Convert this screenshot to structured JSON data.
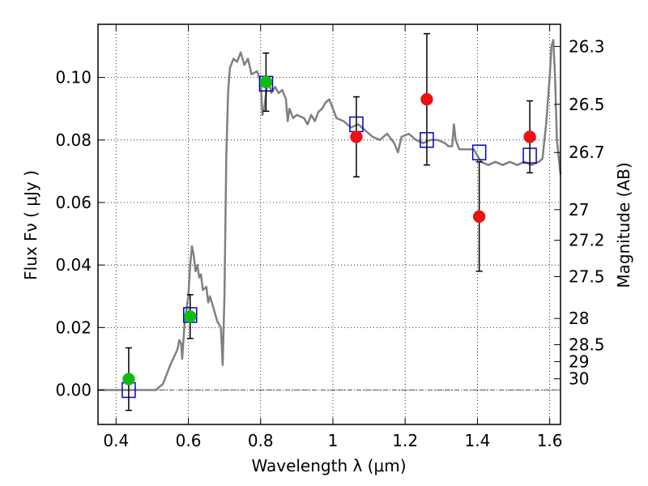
{
  "chart_data": {
    "type": "scatter",
    "xlabel": "Wavelength  λ (μm)",
    "ylabel": "Flux  Fν  ( μJy )",
    "ylabel_right": "Magnitude (AB)",
    "xlim": [
      0.35,
      1.63
    ],
    "ylim": [
      -0.011,
      0.117
    ],
    "grid": true,
    "x_ticks": [
      0.4,
      0.6,
      0.8,
      1.0,
      1.2,
      1.4,
      1.6
    ],
    "x_tick_labels": [
      "0.4",
      "0.6",
      "0.8",
      "1",
      "1.2",
      "1.4",
      "1.6"
    ],
    "y_ticks": [
      0.0,
      0.02,
      0.04,
      0.06,
      0.08,
      0.1
    ],
    "y_tick_labels": [
      "0.00",
      "0.02",
      "0.04",
      "0.06",
      "0.08",
      "0.10"
    ],
    "right_ticks": [
      {
        "label": "26.3",
        "flux": 0.1099
      },
      {
        "label": "26.5",
        "flux": 0.0914
      },
      {
        "label": "26.7",
        "flux": 0.076
      },
      {
        "label": "27",
        "flux": 0.0577
      },
      {
        "label": "27.2",
        "flux": 0.0479
      },
      {
        "label": "27.5",
        "flux": 0.0363
      },
      {
        "label": "28",
        "flux": 0.0229
      },
      {
        "label": "28.5",
        "flux": 0.0145
      },
      {
        "label": "29",
        "flux": 0.0091
      },
      {
        "label": "30",
        "flux": 0.0036
      }
    ],
    "zero_line": 0.0,
    "colors": {
      "model": "#808080",
      "model_points": "#0000cc",
      "green_points": "#11bb11",
      "red_points": "#ee1111",
      "errorbars": "#000000"
    },
    "series": [
      {
        "kind": "line",
        "points": [
          [
            0.35,
            0.0
          ],
          [
            0.51,
            0.0
          ],
          [
            0.53,
            0.002
          ],
          [
            0.55,
            0.008
          ],
          [
            0.57,
            0.013
          ],
          [
            0.575,
            0.016
          ],
          [
            0.58,
            0.015
          ],
          [
            0.583,
            0.01
          ],
          [
            0.59,
            0.022
          ],
          [
            0.6,
            0.03
          ],
          [
            0.605,
            0.04
          ],
          [
            0.61,
            0.046
          ],
          [
            0.615,
            0.043
          ],
          [
            0.62,
            0.038
          ],
          [
            0.625,
            0.04
          ],
          [
            0.63,
            0.036
          ],
          [
            0.635,
            0.037
          ],
          [
            0.64,
            0.032
          ],
          [
            0.65,
            0.033
          ],
          [
            0.655,
            0.028
          ],
          [
            0.66,
            0.03
          ],
          [
            0.67,
            0.026
          ],
          [
            0.68,
            0.022
          ],
          [
            0.69,
            0.02
          ],
          [
            0.695,
            0.008
          ],
          [
            0.7,
            0.03
          ],
          [
            0.705,
            0.075
          ],
          [
            0.71,
            0.095
          ],
          [
            0.715,
            0.103
          ],
          [
            0.725,
            0.106
          ],
          [
            0.735,
            0.105
          ],
          [
            0.745,
            0.108
          ],
          [
            0.755,
            0.104
          ],
          [
            0.765,
            0.106
          ],
          [
            0.775,
            0.101
          ],
          [
            0.79,
            0.102
          ],
          [
            0.8,
            0.099
          ],
          [
            0.805,
            0.088
          ],
          [
            0.81,
            0.09
          ],
          [
            0.82,
            0.1
          ],
          [
            0.83,
            0.095
          ],
          [
            0.84,
            0.097
          ],
          [
            0.85,
            0.095
          ],
          [
            0.86,
            0.096
          ],
          [
            0.87,
            0.093
          ],
          [
            0.875,
            0.086
          ],
          [
            0.88,
            0.09
          ],
          [
            0.89,
            0.087
          ],
          [
            0.9,
            0.088
          ],
          [
            0.92,
            0.087
          ],
          [
            0.93,
            0.085
          ],
          [
            0.94,
            0.088
          ],
          [
            0.95,
            0.086
          ],
          [
            0.96,
            0.089
          ],
          [
            0.97,
            0.09
          ],
          [
            0.98,
            0.092
          ],
          [
            0.99,
            0.093
          ],
          [
            1.0,
            0.09
          ],
          [
            1.01,
            0.087
          ],
          [
            1.03,
            0.086
          ],
          [
            1.05,
            0.084
          ],
          [
            1.07,
            0.085
          ],
          [
            1.09,
            0.083
          ],
          [
            1.11,
            0.081
          ],
          [
            1.13,
            0.08
          ],
          [
            1.15,
            0.082
          ],
          [
            1.17,
            0.079
          ],
          [
            1.18,
            0.076
          ],
          [
            1.19,
            0.081
          ],
          [
            1.21,
            0.082
          ],
          [
            1.23,
            0.08
          ],
          [
            1.25,
            0.079
          ],
          [
            1.27,
            0.08
          ],
          [
            1.29,
            0.08
          ],
          [
            1.31,
            0.079
          ],
          [
            1.32,
            0.078
          ],
          [
            1.33,
            0.078
          ],
          [
            1.335,
            0.085
          ],
          [
            1.34,
            0.08
          ],
          [
            1.35,
            0.077
          ],
          [
            1.37,
            0.077
          ],
          [
            1.39,
            0.077
          ],
          [
            1.4,
            0.075
          ],
          [
            1.41,
            0.073
          ],
          [
            1.43,
            0.072
          ],
          [
            1.45,
            0.073
          ],
          [
            1.47,
            0.072
          ],
          [
            1.49,
            0.073
          ],
          [
            1.51,
            0.072
          ],
          [
            1.53,
            0.073
          ],
          [
            1.55,
            0.072
          ],
          [
            1.57,
            0.073
          ],
          [
            1.58,
            0.074
          ],
          [
            1.59,
            0.085
          ],
          [
            1.6,
            0.1
          ],
          [
            1.605,
            0.11
          ],
          [
            1.61,
            0.112
          ],
          [
            1.615,
            0.1
          ],
          [
            1.62,
            0.08
          ],
          [
            1.63,
            0.069
          ]
        ]
      },
      {
        "kind": "squares",
        "x": [
          0.435,
          0.605,
          0.815,
          1.065,
          1.26,
          1.405,
          1.545
        ],
        "y": [
          0.0,
          0.024,
          0.098,
          0.085,
          0.08,
          0.076,
          0.075
        ]
      },
      {
        "kind": "green-points",
        "x": [
          0.435,
          0.605,
          0.815
        ],
        "y": [
          0.0035,
          0.0235,
          0.0985
        ],
        "yerr": [
          0.01,
          0.007,
          0.0093
        ]
      },
      {
        "kind": "red-points",
        "x": [
          1.065,
          1.26,
          1.405,
          1.545
        ],
        "y": [
          0.081,
          0.093,
          0.0555,
          0.081
        ],
        "yerr": [
          0.0128,
          0.021,
          0.0175,
          0.0115
        ]
      }
    ]
  }
}
